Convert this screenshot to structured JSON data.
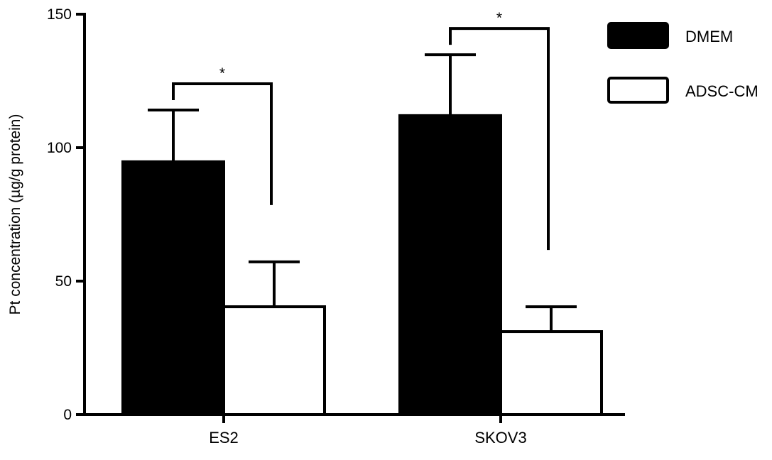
{
  "chart_data": {
    "type": "bar",
    "categories": [
      "ES2",
      "SKOV3"
    ],
    "series": [
      {
        "name": "DMEM",
        "values": [
          94.7,
          112.0
        ],
        "error_upper": [
          114.1,
          134.8
        ],
        "color": "#000000"
      },
      {
        "name": "ADSC-CM",
        "values": [
          40.4,
          31.1
        ],
        "error_upper": [
          57.2,
          40.4
        ],
        "color": "#ffffff"
      }
    ],
    "ylabel": "Pt concentration (µg/g protein)",
    "xlabel": "",
    "ylim": [
      0,
      150
    ],
    "yticks": [
      0,
      50,
      100,
      150
    ],
    "ytick_labels": [
      "0",
      "50",
      "100",
      "150"
    ],
    "significance": [
      {
        "category": "ES2",
        "label": "*"
      },
      {
        "category": "SKOV3",
        "label": "*"
      }
    ],
    "legend_position": "top-right",
    "grid": false
  }
}
